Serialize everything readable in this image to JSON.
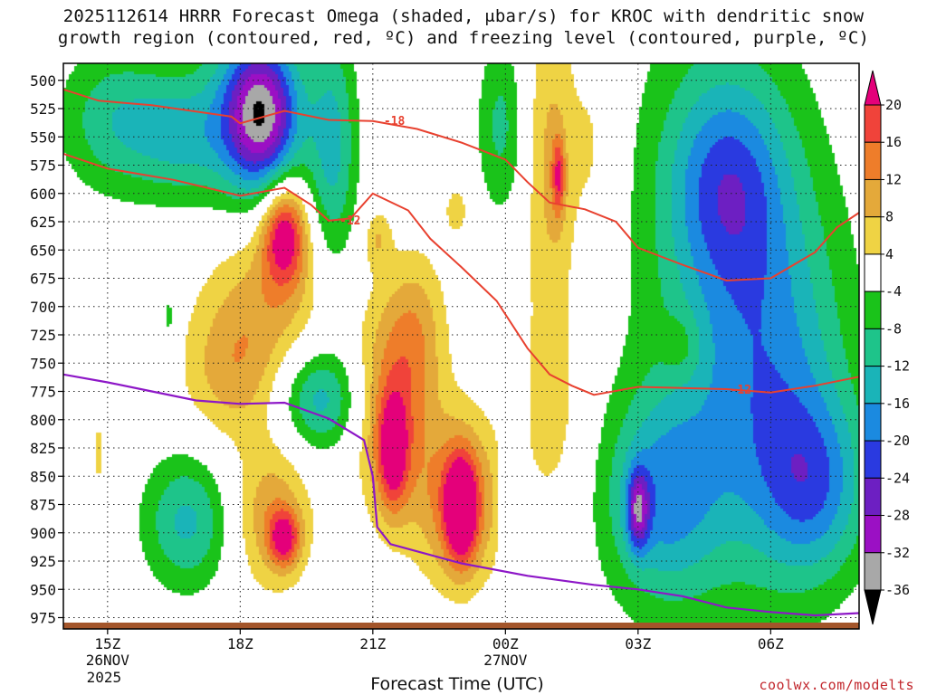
{
  "title_line1": "2025112614 HRRR Forecast Omega (shaded, μbar/s) for KROC with dendritic snow",
  "title_line2": "growth region (contoured, red, ºC) and freezing level (contoured, purple, ºC)",
  "credit": "coolwx.com/modelts",
  "chart_data": {
    "type": "heatmap",
    "title": "2025112614 HRRR Forecast Omega (shaded, μbar/s) for KROC with dendritic snow growth region (contoured, red, ºC) and freezing level (contoured, purple, ºC)",
    "xlabel": "Forecast Time (UTC)",
    "ylabel": "",
    "x_ticks": [
      {
        "label": "15Z",
        "sub1": "26NOV",
        "sub2": "2025",
        "hour": 15
      },
      {
        "label": "18Z",
        "sub1": "",
        "sub2": "",
        "hour": 18
      },
      {
        "label": "21Z",
        "sub1": "",
        "sub2": "",
        "hour": 21
      },
      {
        "label": "00Z",
        "sub1": "27NOV",
        "sub2": "",
        "hour": 24
      },
      {
        "label": "03Z",
        "sub1": "",
        "sub2": "",
        "hour": 27
      },
      {
        "label": "06Z",
        "sub1": "",
        "sub2": "",
        "hour": 30
      }
    ],
    "xlim": [
      14,
      32
    ],
    "ylim": [
      985,
      485
    ],
    "y_ticks": [
      500,
      525,
      550,
      575,
      600,
      625,
      650,
      675,
      700,
      725,
      750,
      775,
      800,
      825,
      850,
      875,
      900,
      925,
      950,
      975
    ],
    "grid": true,
    "colorbar": {
      "levels": [
        20,
        16,
        12,
        8,
        4,
        -4,
        -8,
        -12,
        -16,
        -20,
        -24,
        -28,
        -32,
        -36
      ],
      "colors": [
        "#e4007a",
        "#f0433a",
        "#ee7d2a",
        "#e4a93a",
        "#efd344",
        "#ffffff",
        "#1ac31a",
        "#1ec48a",
        "#1ab4b8",
        "#1b8ae0",
        "#2a3ae0",
        "#6d1fc2",
        "#9b10c4",
        "#a8a8a8",
        "#000000"
      ]
    },
    "dgz_contours": [
      {
        "label": "-18",
        "points": [
          [
            14.0,
            508
          ],
          [
            14.8,
            518
          ],
          [
            16.0,
            522
          ],
          [
            17.8,
            532
          ],
          [
            18.0,
            538
          ],
          [
            19.0,
            527
          ],
          [
            20.0,
            535
          ],
          [
            21.0,
            536
          ],
          [
            22.0,
            543
          ],
          [
            23.0,
            555
          ],
          [
            24.0,
            570
          ],
          [
            24.5,
            590
          ],
          [
            25.0,
            608
          ],
          [
            25.8,
            614
          ],
          [
            26.5,
            625
          ],
          [
            27.0,
            648
          ],
          [
            28.0,
            663
          ],
          [
            29.0,
            677
          ],
          [
            30.0,
            675
          ],
          [
            31.0,
            652
          ],
          [
            31.5,
            630
          ],
          [
            32.0,
            617
          ]
        ]
      },
      {
        "label": "-12",
        "points": [
          [
            14.0,
            565
          ],
          [
            15.0,
            578
          ],
          [
            16.5,
            588
          ],
          [
            18.0,
            602
          ],
          [
            19.0,
            595
          ],
          [
            19.6,
            610
          ],
          [
            20.0,
            624
          ],
          [
            20.5,
            622
          ],
          [
            21.0,
            600
          ],
          [
            21.8,
            615
          ],
          [
            22.3,
            640
          ],
          [
            23.0,
            665
          ],
          [
            23.8,
            695
          ],
          [
            24.5,
            737
          ],
          [
            25.0,
            760
          ],
          [
            25.5,
            770
          ],
          [
            26.0,
            778
          ],
          [
            27.0,
            771
          ],
          [
            28.0,
            772
          ],
          [
            29.0,
            773
          ],
          [
            30.0,
            776
          ],
          [
            31.0,
            770
          ],
          [
            32.0,
            762
          ]
        ]
      }
    ],
    "freezing_level": {
      "points": [
        [
          14.0,
          760
        ],
        [
          15.0,
          767
        ],
        [
          16.0,
          775
        ],
        [
          17.0,
          783
        ],
        [
          18.0,
          786
        ],
        [
          19.0,
          785
        ],
        [
          20.0,
          799
        ],
        [
          20.8,
          818
        ],
        [
          21.0,
          850
        ],
        [
          21.1,
          895
        ],
        [
          21.4,
          910
        ],
        [
          23.0,
          927
        ],
        [
          24.5,
          938
        ],
        [
          26.0,
          946
        ],
        [
          27.0,
          950
        ],
        [
          28.0,
          956
        ],
        [
          29.0,
          966
        ],
        [
          30.0,
          970
        ],
        [
          31.0,
          973
        ],
        [
          32.0,
          971
        ]
      ]
    },
    "omega_fields": [
      {
        "cx": 15.2,
        "cy": 535,
        "rx": 1.3,
        "ry": 65,
        "peak": -11
      },
      {
        "cx": 16.7,
        "cy": 550,
        "rx": 1.1,
        "ry": 55,
        "peak": -10
      },
      {
        "cx": 18.5,
        "cy": 530,
        "rx": 0.85,
        "ry": 65,
        "peak": -29
      },
      {
        "cx": 18.1,
        "cy": 525,
        "rx": 1.2,
        "ry": 95,
        "peak": -8
      },
      {
        "cx": 20.1,
        "cy": 560,
        "rx": 0.55,
        "ry": 110,
        "peak": -13
      },
      {
        "cx": 23.9,
        "cy": 540,
        "rx": 0.55,
        "ry": 80,
        "peak": -9
      },
      {
        "cx": 19.0,
        "cy": 635,
        "rx": 0.5,
        "ry": 45,
        "peak": 22
      },
      {
        "cx": 18.6,
        "cy": 690,
        "rx": 1.4,
        "ry": 70,
        "peak": 9
      },
      {
        "cx": 17.8,
        "cy": 760,
        "rx": 1.1,
        "ry": 60,
        "peak": 9
      },
      {
        "cx": 18.7,
        "cy": 885,
        "rx": 0.9,
        "ry": 65,
        "peak": 11
      },
      {
        "cx": 19.0,
        "cy": 905,
        "rx": 0.35,
        "ry": 25,
        "peak": 17
      },
      {
        "cx": 21.45,
        "cy": 790,
        "rx": 0.85,
        "ry": 95,
        "peak": 13
      },
      {
        "cx": 21.45,
        "cy": 830,
        "rx": 0.35,
        "ry": 50,
        "peak": 17
      },
      {
        "cx": 22.0,
        "cy": 720,
        "rx": 0.7,
        "ry": 70,
        "peak": 8
      },
      {
        "cx": 22.95,
        "cy": 870,
        "rx": 0.95,
        "ry": 75,
        "peak": 15
      },
      {
        "cx": 23.0,
        "cy": 880,
        "rx": 0.35,
        "ry": 45,
        "peak": 22
      },
      {
        "cx": 21.1,
        "cy": 640,
        "rx": 0.3,
        "ry": 25,
        "peak": 7
      },
      {
        "cx": 22.9,
        "cy": 615,
        "rx": 0.3,
        "ry": 25,
        "peak": 6
      },
      {
        "cx": 25.0,
        "cy": 575,
        "rx": 0.55,
        "ry": 165,
        "peak": 9
      },
      {
        "cx": 25.2,
        "cy": 585,
        "rx": 0.15,
        "ry": 35,
        "peak": 14
      },
      {
        "cx": 25.1,
        "cy": 800,
        "rx": 0.8,
        "ry": 100,
        "peak": 5
      },
      {
        "cx": 26.0,
        "cy": 560,
        "rx": 0.55,
        "ry": 110,
        "peak": 5
      },
      {
        "cx": 28.0,
        "cy": 735,
        "rx": 0.45,
        "ry": 30,
        "peak": 5
      },
      {
        "cx": 14.8,
        "cy": 830,
        "rx": 0.15,
        "ry": 45,
        "peak": 5
      },
      {
        "cx": 24.0,
        "cy": 870,
        "rx": 0.15,
        "ry": 75,
        "peak": -6
      },
      {
        "cx": 16.4,
        "cy": 710,
        "rx": 0.2,
        "ry": 35,
        "peak": -6
      },
      {
        "cx": 19.8,
        "cy": 782,
        "rx": 0.9,
        "ry": 45,
        "peak": -14
      },
      {
        "cx": 16.8,
        "cy": 890,
        "rx": 1.0,
        "ry": 60,
        "peak": -13
      },
      {
        "cx": 27.5,
        "cy": 870,
        "rx": 1.3,
        "ry": 90,
        "peak": -15
      },
      {
        "cx": 27.0,
        "cy": 880,
        "rx": 0.25,
        "ry": 35,
        "peak": -19
      },
      {
        "cx": 29.0,
        "cy": 590,
        "rx": 1.3,
        "ry": 90,
        "peak": -14
      },
      {
        "cx": 30.0,
        "cy": 760,
        "rx": 1.8,
        "ry": 170,
        "peak": -14
      },
      {
        "cx": 31.0,
        "cy": 860,
        "rx": 1.2,
        "ry": 80,
        "peak": -14
      },
      {
        "cx": 28.8,
        "cy": 650,
        "rx": 2.2,
        "ry": 300,
        "peak": -7
      }
    ]
  }
}
